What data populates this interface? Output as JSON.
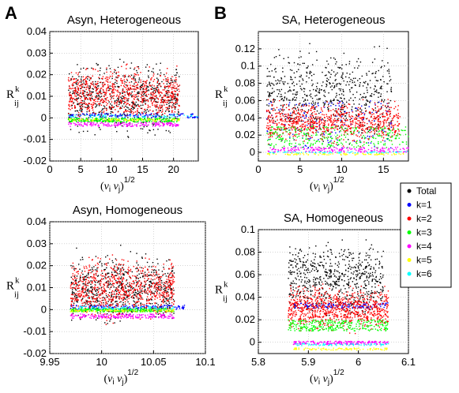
{
  "figure": {
    "panel_letters": [
      "A",
      "B"
    ],
    "ylabel_main": "R",
    "ylabel_sup": "k",
    "ylabel_sub": "ij",
    "xlabel_open": "(",
    "xlabel_vi": "v",
    "xlabel_i": "i",
    "xlabel_vj": " v",
    "xlabel_j": "j",
    "xlabel_close": ")",
    "xlabel_exp": "1/2"
  },
  "legend": {
    "entries": [
      {
        "label": "Total",
        "color": "#000000"
      },
      {
        "label": "k=1",
        "color": "#0000ff"
      },
      {
        "label": "k=2",
        "color": "#ff0000"
      },
      {
        "label": "k=3",
        "color": "#00ff00"
      },
      {
        "label": "k=4",
        "color": "#ff00ff"
      },
      {
        "label": "k=5",
        "color": "#ffff00"
      },
      {
        "label": "k=6",
        "color": "#00ffff"
      }
    ]
  },
  "chart_data": [
    {
      "type": "scatter",
      "title": "Asyn, Heterogeneous",
      "xlim": [
        0,
        24
      ],
      "ylim": [
        -0.02,
        0.04
      ],
      "xticks": [
        0,
        5,
        10,
        15,
        20
      ],
      "xticklabels": [
        "0",
        "5",
        "10",
        "15",
        "20"
      ],
      "yticks": [
        -0.02,
        -0.01,
        0,
        0.01,
        0.02,
        0.03,
        0.04
      ],
      "yticklabels": [
        "-0.02",
        "-0.01",
        "0",
        "0.01",
        "0.02",
        "0.03",
        "0.04"
      ],
      "grid": true,
      "series": [
        {
          "name": "Total",
          "x_range": [
            3,
            21
          ],
          "y_range": [
            -0.012,
            0.03
          ]
        },
        {
          "name": "k=1",
          "x_range": [
            3,
            24
          ],
          "y_range": [
            0.0,
            0.002
          ]
        },
        {
          "name": "k=2",
          "x_range": [
            3,
            21
          ],
          "y_range": [
            -0.005,
            0.027
          ]
        },
        {
          "name": "k=3",
          "x_range": [
            3,
            21
          ],
          "y_range": [
            -0.002,
            0.0
          ]
        },
        {
          "name": "k=4",
          "x_range": [
            3,
            21
          ],
          "y_range": [
            -0.004,
            -0.002
          ]
        },
        {
          "name": "k=5",
          "x_range": [
            3,
            21
          ],
          "y_range": [
            -0.0015,
            -0.0005
          ]
        },
        {
          "name": "k=6",
          "x_range": [
            3,
            24
          ],
          "y_range": [
            0.0,
            0.0015
          ]
        }
      ]
    },
    {
      "type": "scatter",
      "title": "SA, Heterogeneous",
      "xlim": [
        0,
        18
      ],
      "ylim": [
        -0.01,
        0.14
      ],
      "xticks": [
        0,
        5,
        10,
        15
      ],
      "xticklabels": [
        "0",
        "5",
        "10",
        "15"
      ],
      "yticks": [
        0,
        0.02,
        0.04,
        0.06,
        0.08,
        0.1,
        0.12
      ],
      "yticklabels": [
        "0",
        "0.02",
        "0.04",
        "0.06",
        "0.08",
        "0.1",
        "0.12"
      ],
      "grid": true,
      "series": [
        {
          "name": "Total",
          "x_range": [
            1,
            16
          ],
          "y_range": [
            0.0,
            0.135
          ]
        },
        {
          "name": "k=1",
          "x_range": [
            1,
            16
          ],
          "y_range": [
            0.005,
            0.06
          ]
        },
        {
          "name": "k=2",
          "x_range": [
            1,
            17
          ],
          "y_range": [
            0.005,
            0.065
          ]
        },
        {
          "name": "k=3",
          "x_range": [
            1,
            18
          ],
          "y_range": [
            0.005,
            0.03
          ]
        },
        {
          "name": "k=4",
          "x_range": [
            1,
            18
          ],
          "y_range": [
            0.0,
            0.006
          ]
        },
        {
          "name": "k=5",
          "x_range": [
            1,
            18
          ],
          "y_range": [
            -0.003,
            -0.001
          ]
        },
        {
          "name": "k=6",
          "x_range": [
            1,
            18
          ],
          "y_range": [
            -0.001,
            0.001
          ]
        }
      ]
    },
    {
      "type": "scatter",
      "title": "Asyn, Homogeneous",
      "xlim": [
        9.95,
        10.1
      ],
      "ylim": [
        -0.02,
        0.04
      ],
      "xticks": [
        9.95,
        10,
        10.05,
        10.1
      ],
      "xticklabels": [
        "9.95",
        "10",
        "10.05",
        "10.1"
      ],
      "yticks": [
        -0.02,
        -0.01,
        0,
        0.01,
        0.02,
        0.03,
        0.04
      ],
      "yticklabels": [
        "-0.02",
        "-0.01",
        "0",
        "0.01",
        "0.02",
        "0.03",
        "0.04"
      ],
      "grid": true,
      "series": [
        {
          "name": "Total",
          "x_range": [
            9.97,
            10.07
          ],
          "y_range": [
            -0.01,
            0.03
          ]
        },
        {
          "name": "k=1",
          "x_range": [
            9.97,
            10.08
          ],
          "y_range": [
            0.0,
            0.002
          ]
        },
        {
          "name": "k=2",
          "x_range": [
            9.97,
            10.07
          ],
          "y_range": [
            -0.008,
            0.027
          ]
        },
        {
          "name": "k=3",
          "x_range": [
            9.97,
            10.07
          ],
          "y_range": [
            -0.001,
            0.0005
          ]
        },
        {
          "name": "k=4",
          "x_range": [
            9.97,
            10.07
          ],
          "y_range": [
            -0.004,
            -0.002
          ]
        },
        {
          "name": "k=5",
          "x_range": [
            9.97,
            10.07
          ],
          "y_range": [
            -0.001,
            0.0
          ]
        },
        {
          "name": "k=6",
          "x_range": [
            9.97,
            10.07
          ],
          "y_range": [
            0.0,
            0.0015
          ]
        }
      ]
    },
    {
      "type": "scatter",
      "title": "SA, Homogeneous",
      "xlim": [
        5.8,
        6.1
      ],
      "ylim": [
        -0.01,
        0.1
      ],
      "xticks": [
        5.8,
        5.9,
        6.0,
        6.1
      ],
      "xticklabels": [
        "5.8",
        "5.9",
        "6",
        "6.1"
      ],
      "yticks": [
        0,
        0.02,
        0.04,
        0.06,
        0.08,
        0.1
      ],
      "yticklabels": [
        "0",
        "0.02",
        "0.04",
        "0.06",
        "0.08",
        "0.1"
      ],
      "grid": true,
      "series": [
        {
          "name": "Total",
          "x_range": [
            5.86,
            6.05
          ],
          "y_range": [
            0.015,
            0.098
          ]
        },
        {
          "name": "k=1",
          "x_range": [
            5.87,
            6.06
          ],
          "y_range": [
            0.03,
            0.035
          ]
        },
        {
          "name": "k=2",
          "x_range": [
            5.86,
            6.06
          ],
          "y_range": [
            0.005,
            0.055
          ]
        },
        {
          "name": "k=3",
          "x_range": [
            5.86,
            6.06
          ],
          "y_range": [
            0.01,
            0.02
          ]
        },
        {
          "name": "k=4",
          "x_range": [
            5.87,
            6.06
          ],
          "y_range": [
            -0.002,
            0.001
          ]
        },
        {
          "name": "k=5",
          "x_range": [
            5.87,
            6.06
          ],
          "y_range": [
            -0.007,
            -0.005
          ]
        },
        {
          "name": "k=6",
          "x_range": [
            5.87,
            6.06
          ],
          "y_range": [
            -0.003,
            -0.001
          ]
        }
      ]
    }
  ]
}
